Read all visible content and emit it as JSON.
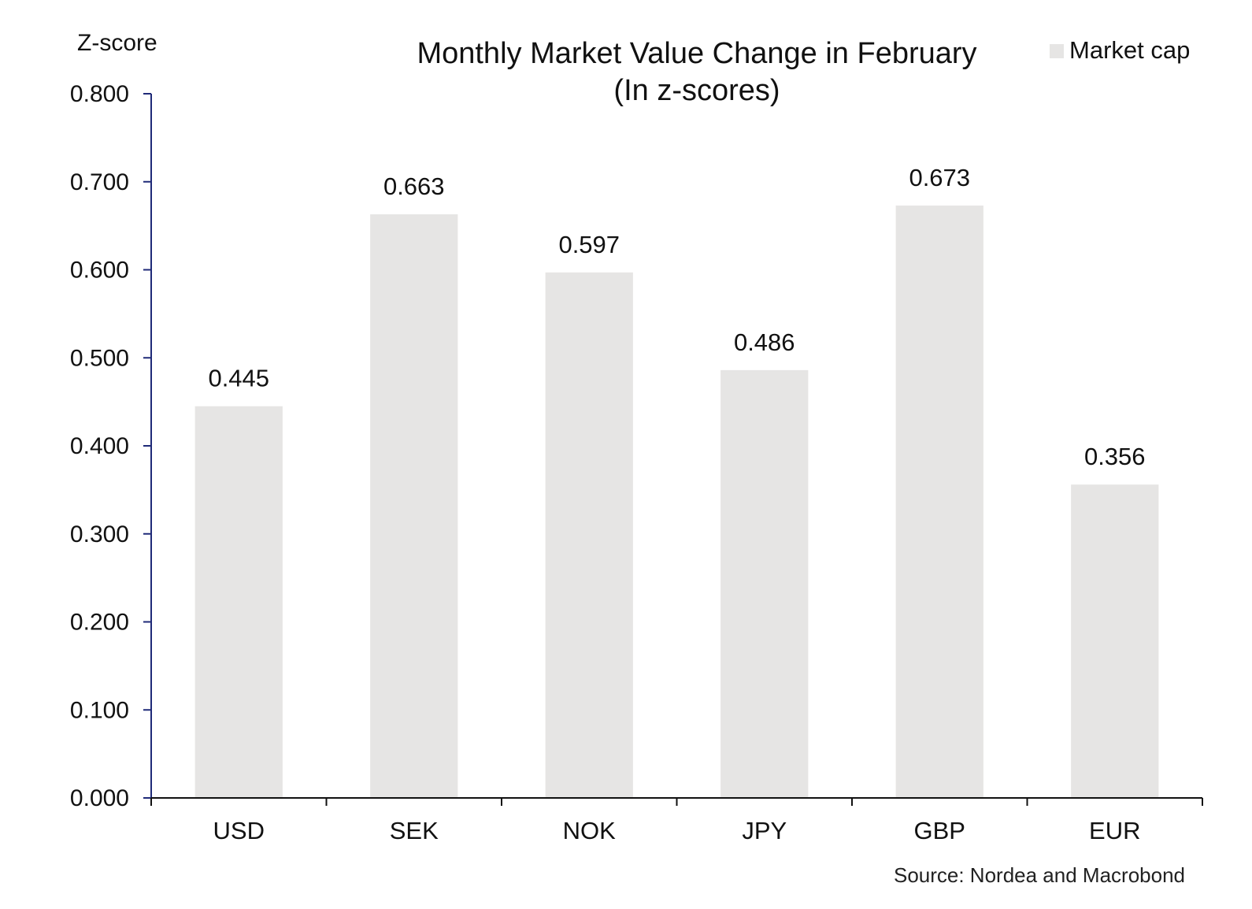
{
  "chart_data": {
    "type": "bar",
    "title": "Monthly Market Value Change in February",
    "subtitle": "(In z-scores)",
    "ylabel": "Z-score",
    "xlabel": "",
    "categories": [
      "USD",
      "SEK",
      "NOK",
      "JPY",
      "GBP",
      "EUR"
    ],
    "series": [
      {
        "name": "Market cap",
        "values": [
          0.445,
          0.663,
          0.597,
          0.486,
          0.673,
          0.356
        ],
        "color": "#e6e5e4"
      }
    ],
    "data_labels": [
      "0.445",
      "0.663",
      "0.597",
      "0.486",
      "0.673",
      "0.356"
    ],
    "ylim": [
      0,
      0.8
    ],
    "yticks": [
      0,
      0.1,
      0.2,
      0.3,
      0.4,
      0.5,
      0.6,
      0.7,
      0.8
    ],
    "ytick_labels": [
      "0.000",
      "0.100",
      "0.200",
      "0.300",
      "0.400",
      "0.500",
      "0.600",
      "0.700",
      "0.800"
    ],
    "legend": {
      "position": "top-right"
    },
    "grid": false,
    "colors": {
      "bar": "#e6e5e4",
      "y_axis": "#1f2a78",
      "x_axis": "#111111"
    }
  },
  "source_note": "Source: Nordea and Macrobond"
}
